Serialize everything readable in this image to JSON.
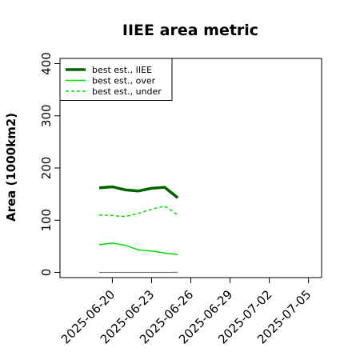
{
  "chart_data": {
    "type": "line",
    "title": "IIEE area metric",
    "xlabel": "",
    "ylabel": "Area (1000km2)",
    "ylim": [
      -10,
      410
    ],
    "xlim": [
      "2025-06-16",
      "2025-07-06"
    ],
    "grid": false,
    "legend_position": "top-left",
    "y_ticks": [
      0,
      100,
      200,
      300,
      400
    ],
    "x_ticks": [
      "2025-06-20",
      "2025-06-23",
      "2025-06-26",
      "2025-06-29",
      "2025-07-02",
      "2025-07-05"
    ],
    "x": [
      "2025-06-19",
      "2025-06-20",
      "2025-06-21",
      "2025-06-22",
      "2025-06-23",
      "2025-06-24",
      "2025-06-25"
    ],
    "series": [
      {
        "name": "best est., IIEE",
        "color": "#006400",
        "style": "solid",
        "width": 3.5,
        "values": [
          162,
          164,
          158,
          156,
          161,
          163,
          143
        ]
      },
      {
        "name": "best est., over",
        "color": "#00dd00",
        "style": "solid",
        "width": 1.5,
        "values": [
          53,
          56,
          52,
          43,
          41,
          37,
          34
        ]
      },
      {
        "name": "best est., under",
        "color": "#00dd00",
        "style": "dashed",
        "width": 1.5,
        "values": [
          110,
          109,
          107,
          113,
          121,
          127,
          110
        ]
      },
      {
        "name": "",
        "color": "#777777",
        "style": "solid",
        "width": 1.2,
        "values": [
          0,
          0,
          0,
          0,
          0,
          0,
          0
        ]
      }
    ]
  }
}
